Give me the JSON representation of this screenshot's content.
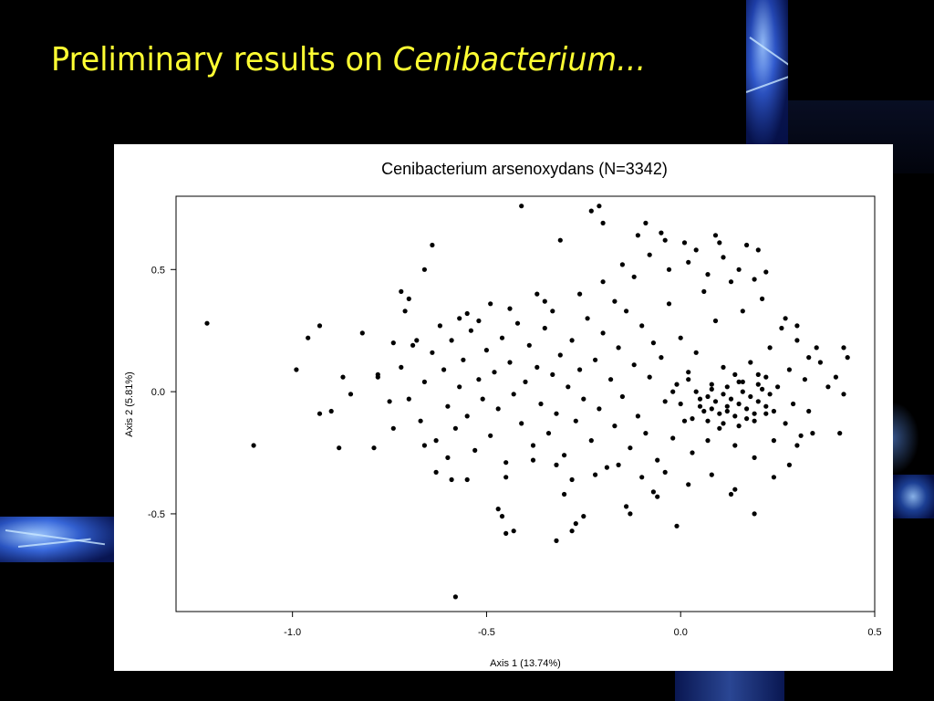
{
  "slide": {
    "title_prefix": "Preliminary results on ",
    "title_italic": "Cenibacterium...",
    "title_color": "#ffff33",
    "background_color": "#000000",
    "accent_color": "#3f6bd8"
  },
  "chart_data": {
    "type": "scatter",
    "title": "Cenibacterium arsenoxydans (N=3342)",
    "xlabel": "Axis 1 (13.74%)",
    "ylabel": "Axis 2 (5.81%)",
    "xlim": [
      -1.3,
      0.5
    ],
    "ylim": [
      -0.9,
      0.8
    ],
    "xticks": [
      -1.0,
      -0.5,
      0.0,
      0.5
    ],
    "xtick_labels": [
      "-1.0",
      "-0.5",
      "0.0",
      "0.5"
    ],
    "yticks": [
      -0.5,
      0.0,
      0.5
    ],
    "ytick_labels": [
      "-0.5",
      "0.0",
      "0.5"
    ],
    "grid": false,
    "legend": "none",
    "marker_color": "#000000",
    "n_points": 3342,
    "points": [
      [
        -1.22,
        0.28
      ],
      [
        -1.1,
        -0.22
      ],
      [
        -0.99,
        0.09
      ],
      [
        -0.96,
        0.22
      ],
      [
        -0.93,
        0.27
      ],
      [
        -0.93,
        -0.09
      ],
      [
        -0.9,
        -0.08
      ],
      [
        -0.87,
        0.06
      ],
      [
        -0.88,
        -0.23
      ],
      [
        -0.85,
        -0.01
      ],
      [
        -0.82,
        0.24
      ],
      [
        -0.79,
        -0.23
      ],
      [
        -0.78,
        0.07
      ],
      [
        -0.74,
        0.2
      ],
      [
        -0.72,
        0.41
      ],
      [
        -0.71,
        0.33
      ],
      [
        -0.7,
        0.38
      ],
      [
        -0.68,
        0.21
      ],
      [
        -0.66,
        0.5
      ],
      [
        -0.64,
        0.6
      ],
      [
        -0.63,
        -0.33
      ],
      [
        -0.59,
        -0.36
      ],
      [
        -0.58,
        -0.84
      ],
      [
        -0.57,
        0.3
      ],
      [
        -0.55,
        -0.36
      ],
      [
        -0.52,
        0.29
      ],
      [
        -0.49,
        0.36
      ],
      [
        -0.47,
        -0.48
      ],
      [
        -0.46,
        -0.51
      ],
      [
        -0.45,
        -0.58
      ],
      [
        -0.43,
        -0.57
      ],
      [
        -0.41,
        0.76
      ],
      [
        -0.37,
        0.4
      ],
      [
        -0.35,
        0.37
      ],
      [
        -0.32,
        -0.61
      ],
      [
        -0.31,
        0.62
      ],
      [
        -0.3,
        -0.42
      ],
      [
        -0.28,
        -0.57
      ],
      [
        -0.27,
        -0.54
      ],
      [
        -0.25,
        -0.51
      ],
      [
        -0.23,
        0.74
      ],
      [
        -0.21,
        0.76
      ],
      [
        -0.2,
        0.69
      ],
      [
        -0.17,
        0.37
      ],
      [
        -0.14,
        -0.47
      ],
      [
        -0.13,
        -0.5
      ],
      [
        -0.11,
        0.64
      ],
      [
        -0.09,
        0.69
      ],
      [
        -0.07,
        -0.41
      ],
      [
        -0.06,
        -0.43
      ],
      [
        -0.05,
        0.65
      ],
      [
        -0.04,
        0.62
      ],
      [
        -0.01,
        -0.55
      ],
      [
        0.01,
        0.61
      ],
      [
        0.04,
        0.58
      ],
      [
        0.09,
        0.64
      ],
      [
        0.1,
        0.61
      ],
      [
        0.13,
        -0.42
      ],
      [
        0.14,
        -0.4
      ],
      [
        0.17,
        0.6
      ],
      [
        0.19,
        -0.5
      ],
      [
        0.2,
        0.58
      ],
      [
        0.22,
        0.49
      ],
      [
        0.28,
        -0.3
      ],
      [
        0.33,
        0.14
      ],
      [
        0.34,
        -0.17
      ],
      [
        0.36,
        0.12
      ],
      [
        0.38,
        0.02
      ],
      [
        0.4,
        0.06
      ],
      [
        0.42,
        0.18
      ],
      [
        0.43,
        0.14
      ],
      [
        0.42,
        -0.01
      ],
      [
        0.41,
        -0.17
      ],
      [
        0.35,
        0.18
      ],
      [
        0.3,
        0.27
      ],
      [
        -0.78,
        0.06
      ],
      [
        -0.75,
        -0.04
      ],
      [
        -0.72,
        0.1
      ],
      [
        -0.7,
        -0.03
      ],
      [
        -0.69,
        0.19
      ],
      [
        -0.67,
        -0.12
      ],
      [
        -0.66,
        0.04
      ],
      [
        -0.64,
        0.16
      ],
      [
        -0.63,
        -0.2
      ],
      [
        -0.61,
        0.09
      ],
      [
        -0.6,
        -0.06
      ],
      [
        -0.59,
        0.21
      ],
      [
        -0.58,
        -0.15
      ],
      [
        -0.57,
        0.02
      ],
      [
        -0.56,
        0.13
      ],
      [
        -0.55,
        -0.1
      ],
      [
        -0.54,
        0.25
      ],
      [
        -0.53,
        -0.24
      ],
      [
        -0.52,
        0.05
      ],
      [
        -0.51,
        -0.03
      ],
      [
        -0.5,
        0.17
      ],
      [
        -0.49,
        -0.18
      ],
      [
        -0.48,
        0.08
      ],
      [
        -0.47,
        -0.07
      ],
      [
        -0.46,
        0.22
      ],
      [
        -0.45,
        -0.29
      ],
      [
        -0.44,
        0.12
      ],
      [
        -0.43,
        -0.01
      ],
      [
        -0.42,
        0.28
      ],
      [
        -0.41,
        -0.13
      ],
      [
        -0.4,
        0.04
      ],
      [
        -0.39,
        0.19
      ],
      [
        -0.38,
        -0.22
      ],
      [
        -0.37,
        0.1
      ],
      [
        -0.36,
        -0.05
      ],
      [
        -0.35,
        0.26
      ],
      [
        -0.34,
        -0.17
      ],
      [
        -0.33,
        0.07
      ],
      [
        -0.32,
        -0.09
      ],
      [
        -0.31,
        0.15
      ],
      [
        -0.3,
        -0.26
      ],
      [
        -0.29,
        0.02
      ],
      [
        -0.28,
        0.21
      ],
      [
        -0.27,
        -0.12
      ],
      [
        -0.26,
        0.09
      ],
      [
        -0.25,
        -0.03
      ],
      [
        -0.24,
        0.3
      ],
      [
        -0.23,
        -0.2
      ],
      [
        -0.22,
        0.13
      ],
      [
        -0.21,
        -0.07
      ],
      [
        -0.2,
        0.24
      ],
      [
        -0.19,
        -0.31
      ],
      [
        -0.18,
        0.05
      ],
      [
        -0.17,
        -0.14
      ],
      [
        -0.16,
        0.18
      ],
      [
        -0.15,
        -0.02
      ],
      [
        -0.14,
        0.33
      ],
      [
        -0.13,
        -0.23
      ],
      [
        -0.12,
        0.11
      ],
      [
        -0.11,
        -0.1
      ],
      [
        -0.1,
        0.27
      ],
      [
        -0.09,
        -0.17
      ],
      [
        -0.08,
        0.06
      ],
      [
        -0.07,
        0.2
      ],
      [
        -0.06,
        -0.28
      ],
      [
        -0.05,
        0.14
      ],
      [
        -0.04,
        -0.04
      ],
      [
        -0.03,
        0.36
      ],
      [
        -0.02,
        -0.19
      ],
      [
        -0.01,
        0.03
      ],
      [
        0.0,
        0.22
      ],
      [
        0.01,
        -0.12
      ],
      [
        0.02,
        0.08
      ],
      [
        0.03,
        -0.25
      ],
      [
        0.04,
        0.16
      ],
      [
        0.05,
        -0.06
      ],
      [
        0.06,
        0.41
      ],
      [
        0.07,
        -0.2
      ],
      [
        0.08,
        0.01
      ],
      [
        0.09,
        0.29
      ],
      [
        0.1,
        -0.15
      ],
      [
        0.11,
        0.1
      ],
      [
        0.12,
        -0.08
      ],
      [
        0.13,
        0.45
      ],
      [
        0.14,
        -0.22
      ],
      [
        0.15,
        0.04
      ],
      [
        0.16,
        0.33
      ],
      [
        0.17,
        -0.11
      ],
      [
        0.18,
        0.12
      ],
      [
        0.19,
        -0.27
      ],
      [
        0.2,
        0.07
      ],
      [
        0.21,
        0.38
      ],
      [
        0.22,
        -0.09
      ],
      [
        0.23,
        0.18
      ],
      [
        0.24,
        -0.2
      ],
      [
        0.25,
        0.02
      ],
      [
        0.26,
        0.26
      ],
      [
        0.27,
        -0.13
      ],
      [
        0.28,
        0.09
      ],
      [
        0.29,
        -0.05
      ],
      [
        0.3,
        0.21
      ],
      [
        0.31,
        -0.18
      ],
      [
        0.32,
        0.05
      ],
      [
        0.33,
        -0.08
      ],
      [
        0.27,
        0.3
      ],
      [
        0.05,
        -0.03
      ],
      [
        0.06,
        -0.08
      ],
      [
        0.07,
        -0.02
      ],
      [
        0.08,
        -0.07
      ],
      [
        0.09,
        -0.04
      ],
      [
        0.1,
        -0.09
      ],
      [
        0.11,
        -0.01
      ],
      [
        0.12,
        -0.06
      ],
      [
        0.13,
        -0.03
      ],
      [
        0.14,
        -0.1
      ],
      [
        0.15,
        -0.05
      ],
      [
        0.16,
        0.0
      ],
      [
        0.17,
        -0.07
      ],
      [
        0.18,
        -0.02
      ],
      [
        0.19,
        -0.09
      ],
      [
        0.2,
        -0.04
      ],
      [
        0.21,
        0.01
      ],
      [
        0.22,
        -0.06
      ],
      [
        0.23,
        -0.01
      ],
      [
        0.24,
        -0.08
      ],
      [
        0.04,
        0.0
      ],
      [
        0.08,
        0.03
      ],
      [
        0.12,
        0.02
      ],
      [
        0.16,
        0.04
      ],
      [
        0.2,
        0.03
      ],
      [
        0.03,
        -0.11
      ],
      [
        0.07,
        -0.12
      ],
      [
        0.11,
        -0.13
      ],
      [
        0.15,
        -0.14
      ],
      [
        0.19,
        -0.12
      ],
      [
        0.0,
        -0.05
      ],
      [
        -0.02,
        0.0
      ],
      [
        0.02,
        0.05
      ],
      [
        0.14,
        0.07
      ],
      [
        0.22,
        0.06
      ],
      [
        -0.32,
        -0.3
      ],
      [
        -0.28,
        -0.36
      ],
      [
        -0.22,
        -0.34
      ],
      [
        -0.16,
        -0.3
      ],
      [
        -0.1,
        -0.35
      ],
      [
        -0.04,
        -0.33
      ],
      [
        0.02,
        -0.38
      ],
      [
        0.08,
        -0.34
      ],
      [
        0.24,
        -0.35
      ],
      [
        0.3,
        -0.22
      ],
      [
        -0.45,
        -0.35
      ],
      [
        -0.38,
        -0.28
      ],
      [
        -0.6,
        -0.27
      ],
      [
        -0.66,
        -0.22
      ],
      [
        -0.74,
        -0.15
      ],
      [
        -0.62,
        0.27
      ],
      [
        -0.55,
        0.32
      ],
      [
        -0.44,
        0.34
      ],
      [
        -0.33,
        0.33
      ],
      [
        -0.26,
        0.4
      ],
      [
        -0.2,
        0.45
      ],
      [
        -0.15,
        0.52
      ],
      [
        -0.12,
        0.47
      ],
      [
        -0.08,
        0.56
      ],
      [
        -0.03,
        0.5
      ],
      [
        0.02,
        0.53
      ],
      [
        0.07,
        0.48
      ],
      [
        0.11,
        0.55
      ],
      [
        0.15,
        0.5
      ],
      [
        0.19,
        0.46
      ]
    ]
  }
}
